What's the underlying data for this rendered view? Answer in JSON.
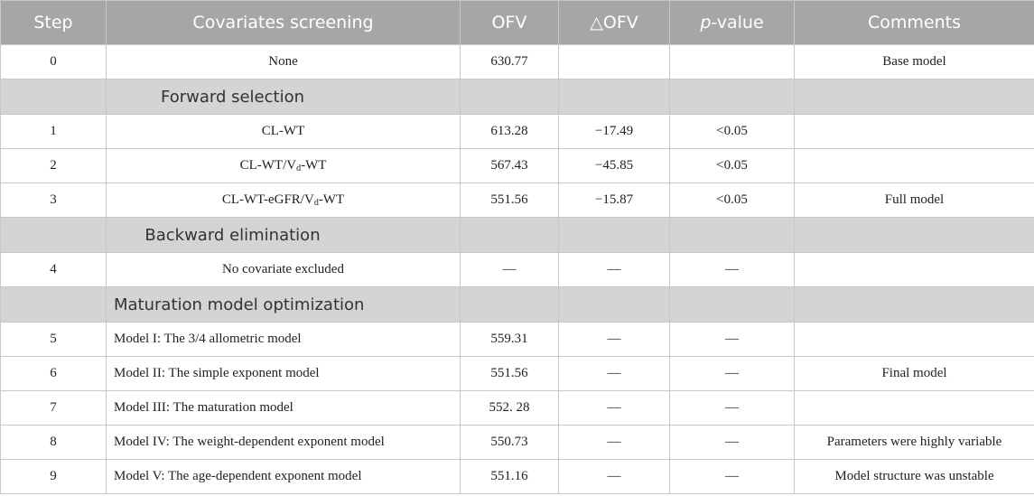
{
  "headers": {
    "step": "Step",
    "covariates": "Covariates screening",
    "ofv": "OFV",
    "delta_ofv": "△OFV",
    "p_italic": "p",
    "p_rest": "-value",
    "comments": "Comments"
  },
  "rows": [
    {
      "step": "0",
      "cov": "None",
      "ofv": "630.77",
      "dofv": "",
      "p": "",
      "comment": "Base model"
    },
    {
      "section": "Forward selection"
    },
    {
      "step": "1",
      "cov": "CL-WT",
      "ofv": "613.28",
      "dofv": "−17.49",
      "p": "<0.05",
      "comment": ""
    },
    {
      "step": "2",
      "cov_pre": "CL-WT/V",
      "cov_sub": "d",
      "cov_post": "-WT",
      "ofv": "567.43",
      "dofv": "−45.85",
      "p": "<0.05",
      "comment": ""
    },
    {
      "step": "3",
      "cov_pre": "CL-WT-eGFR/V",
      "cov_sub": "d",
      "cov_post": "-WT",
      "ofv": "551.56",
      "dofv": "−15.87",
      "p": "<0.05",
      "comment": "Full model"
    },
    {
      "section": "Backward elimination"
    },
    {
      "step": "4",
      "cov": "No covariate excluded",
      "ofv": "—",
      "dofv": "—",
      "p": "—",
      "comment": ""
    },
    {
      "section": "Maturation model optimization"
    },
    {
      "step": "5",
      "cov": "Model I: The 3/4 allometric model",
      "ofv": "559.31",
      "dofv": "—",
      "p": "—",
      "comment": ""
    },
    {
      "step": "6",
      "cov": "Model II: The simple exponent model",
      "ofv": "551.56",
      "dofv": "—",
      "p": "—",
      "comment": "Final model"
    },
    {
      "step": "7",
      "cov": "Model III: The maturation model",
      "ofv": "552. 28",
      "dofv": "—",
      "p": "—",
      "comment": ""
    },
    {
      "step": "8",
      "cov": "Model IV: The weight-dependent exponent model",
      "ofv": "550.73",
      "dofv": "—",
      "p": "—",
      "comment": "Parameters were highly variable"
    },
    {
      "step": "9",
      "cov": "Model V: The age-dependent exponent model",
      "ofv": "551.16",
      "dofv": "—",
      "p": "—",
      "comment": "Model structure was unstable"
    }
  ]
}
